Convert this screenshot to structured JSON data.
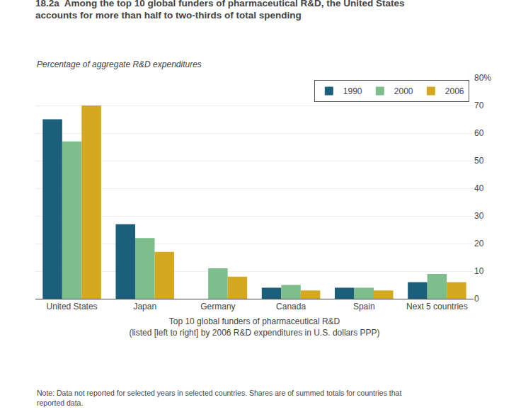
{
  "chart_data": {
    "type": "bar",
    "title": "18.2a  Among the top 10 global funders of pharmaceutical R&D, the United States\naccounts for more than half to two-thirds of total spending",
    "subtitle": "Percentage of aggregate R&D expenditures",
    "xlabel": "Top 10 global funders of pharmaceutical R&D\n(listed [left to right] by 2006 R&D expenditures in U.S. dollars PPP)",
    "annotations": [
      "Note: Data not reported for selected years in selected countries. Shares are of summed totals for countries that\nreported data."
    ],
    "categories": [
      "United States",
      "Japan",
      "Germany",
      "Canada",
      "Spain",
      "Next 5 countries"
    ],
    "series": [
      {
        "name": "1990",
        "color": "#1c5f7a",
        "values": [
          65.0,
          27.0,
          null,
          4.0,
          4.0,
          6.0
        ]
      },
      {
        "name": "2000",
        "color": "#7dbe8c",
        "values": [
          57.0,
          22.0,
          11.0,
          5.0,
          4.0,
          9.0
        ]
      },
      {
        "name": "2006",
        "color": "#d4a820",
        "values": [
          70.0,
          17.0,
          8.0,
          3.0,
          3.0,
          6.0
        ]
      }
    ],
    "ylim": [
      0,
      80
    ],
    "yticks": [
      0,
      10,
      20,
      30,
      40,
      50,
      60,
      70,
      {
        "value": 80,
        "label": "80%"
      }
    ],
    "grid": true,
    "legend": "upper right"
  }
}
